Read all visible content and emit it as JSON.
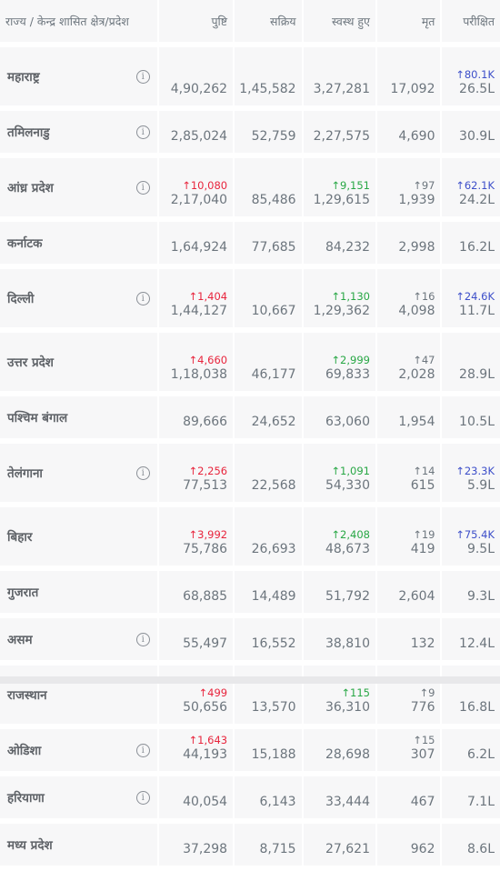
{
  "headers": {
    "name": "राज्य / केन्द्र शासित क्षेत्र/प्रदेश",
    "confirmed": "पुष्टि",
    "active": "सक्रिय",
    "recovered": "स्वस्थ हुए",
    "deceased": "मृत",
    "tested": "परीक्षित"
  },
  "info_symbol": "i",
  "rows": [
    {
      "name": "महाराष्ट्र",
      "info": true,
      "confirmed": "4,90,262",
      "active": "1,45,582",
      "recovered": "3,27,281",
      "deceased": "17,092",
      "tested": "26.5L",
      "d_tested": "↑80.1K"
    },
    {
      "name": "तमिलनाडु",
      "info": true,
      "confirmed": "2,85,024",
      "active": "52,759",
      "recovered": "2,27,575",
      "deceased": "4,690",
      "tested": "30.9L"
    },
    {
      "name": "आंध्र प्रदेश",
      "info": true,
      "confirmed": "2,17,040",
      "d_confirmed": "↑10,080",
      "active": "85,486",
      "recovered": "1,29,615",
      "d_recovered": "↑9,151",
      "deceased": "1,939",
      "d_deceased": "↑97",
      "tested": "24.2L",
      "d_tested": "↑62.1K"
    },
    {
      "name": "कर्नाटक",
      "info": false,
      "confirmed": "1,64,924",
      "active": "77,685",
      "recovered": "84,232",
      "deceased": "2,998",
      "tested": "16.2L"
    },
    {
      "name": "दिल्ली",
      "info": true,
      "confirmed": "1,44,127",
      "d_confirmed": "↑1,404",
      "active": "10,667",
      "recovered": "1,29,362",
      "d_recovered": "↑1,130",
      "deceased": "4,098",
      "d_deceased": "↑16",
      "tested": "11.7L",
      "d_tested": "↑24.6K"
    },
    {
      "name": "उत्तर प्रदेश",
      "info": false,
      "confirmed": "1,18,038",
      "d_confirmed": "↑4,660",
      "active": "46,177",
      "recovered": "69,833",
      "d_recovered": "↑2,999",
      "deceased": "2,028",
      "d_deceased": "↑47",
      "tested": "28.9L"
    },
    {
      "name": "पश्चिम बंगाल",
      "info": false,
      "confirmed": "89,666",
      "active": "24,652",
      "recovered": "63,060",
      "deceased": "1,954",
      "tested": "10.5L"
    },
    {
      "name": "तेलंगाना",
      "info": true,
      "confirmed": "77,513",
      "d_confirmed": "↑2,256",
      "active": "22,568",
      "recovered": "54,330",
      "d_recovered": "↑1,091",
      "deceased": "615",
      "d_deceased": "↑14",
      "tested": "5.9L",
      "d_tested": "↑23.3K"
    },
    {
      "name": "बिहार",
      "info": false,
      "confirmed": "75,786",
      "d_confirmed": "↑3,992",
      "active": "26,693",
      "recovered": "48,673",
      "d_recovered": "↑2,408",
      "deceased": "419",
      "d_deceased": "↑19",
      "tested": "9.5L",
      "d_tested": "↑75.4K"
    },
    {
      "name": "गुजरात",
      "info": false,
      "confirmed": "68,885",
      "active": "14,489",
      "recovered": "51,792",
      "deceased": "2,604",
      "tested": "9.3L"
    },
    {
      "name": "असम",
      "info": true,
      "confirmed": "55,497",
      "active": "16,552",
      "recovered": "38,810",
      "deceased": "132",
      "tested": "12.4L"
    },
    {
      "name": "राजस्थान",
      "info": false,
      "confirmed": "50,656",
      "d_confirmed": "↑499",
      "active": "13,570",
      "recovered": "36,310",
      "d_recovered": "↑115",
      "deceased": "776",
      "d_deceased": "↑9",
      "tested": "16.8L"
    },
    {
      "name": "ओडिशा",
      "info": true,
      "confirmed": "44,193",
      "d_confirmed": "↑1,643",
      "active": "15,188",
      "recovered": "28,698",
      "deceased": "307",
      "d_deceased": "↑15",
      "tested": "6.2L"
    },
    {
      "name": "हरियाणा",
      "info": true,
      "confirmed": "40,054",
      "active": "6,143",
      "recovered": "33,444",
      "deceased": "467",
      "tested": "7.1L"
    },
    {
      "name": "मध्य प्रदेश",
      "info": false,
      "confirmed": "37,298",
      "active": "8,715",
      "recovered": "27,621",
      "deceased": "962",
      "tested": "8.6L"
    }
  ],
  "colors": {
    "increase": "#e8253d",
    "recovered_increase": "#28a745",
    "tests_increase": "#3d4fc9",
    "cell_bg": "#f7f7f8"
  }
}
